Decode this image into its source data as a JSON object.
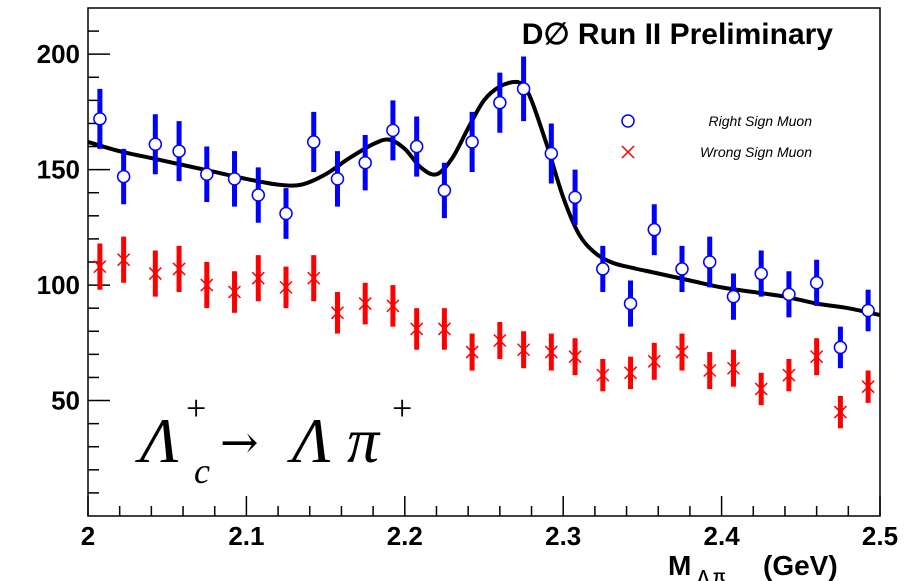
{
  "chart_data": {
    "type": "scatter",
    "title": "D∅ Run II Preliminary",
    "xlabel": "M",
    "xlabel_sub": "Λ π",
    "xlabel_unit": "(GeV)",
    "xlim": [
      2.0,
      2.5
    ],
    "ylim": [
      0,
      220
    ],
    "xticks": [
      "2",
      "2.1",
      "2.2",
      "2.3",
      "2.4",
      "2.5"
    ],
    "yticks": [
      "50",
      "100",
      "150",
      "200"
    ],
    "annotation": {
      "lambda": "Λ",
      "lambda_sup": "+",
      "lambda_sub": "c",
      "arrow": "→",
      "product_lambda": "Λ",
      "pi": "π",
      "pi_sup": "+"
    },
    "legend_position": "top-right",
    "series": [
      {
        "name": "Right Sign Muon",
        "marker": "circle",
        "color": "#0000ff",
        "x": [
          2.0075,
          2.0225,
          2.0425,
          2.0575,
          2.075,
          2.0925,
          2.1075,
          2.125,
          2.1425,
          2.1575,
          2.175,
          2.1925,
          2.2075,
          2.225,
          2.2425,
          2.26,
          2.275,
          2.2925,
          2.3075,
          2.325,
          2.3425,
          2.3575,
          2.375,
          2.3925,
          2.4075,
          2.425,
          2.4425,
          2.46,
          2.475,
          2.4925
        ],
        "y": [
          172,
          147,
          161,
          158,
          148,
          146,
          139,
          131,
          162,
          146,
          153,
          167,
          160,
          141,
          162,
          179,
          185,
          157,
          138,
          107,
          92,
          124,
          107,
          110,
          95,
          105,
          96,
          101,
          73,
          89
        ],
        "err": [
          13,
          12,
          13,
          13,
          12,
          12,
          12,
          11,
          13,
          12,
          12,
          13,
          13,
          12,
          13,
          13,
          14,
          13,
          12,
          10,
          10,
          11,
          10,
          11,
          10,
          10,
          10,
          10,
          9,
          9
        ]
      },
      {
        "name": "Wrong Sign Muon",
        "marker": "cross",
        "color": "#ff0000",
        "x": [
          2.0075,
          2.0225,
          2.0425,
          2.0575,
          2.075,
          2.0925,
          2.1075,
          2.125,
          2.1425,
          2.1575,
          2.175,
          2.1925,
          2.2075,
          2.225,
          2.2425,
          2.26,
          2.275,
          2.2925,
          2.3075,
          2.325,
          2.3425,
          2.3575,
          2.375,
          2.3925,
          2.4075,
          2.425,
          2.4425,
          2.46,
          2.475,
          2.4925
        ],
        "y": [
          108,
          111,
          105,
          107,
          100,
          97,
          103,
          99,
          103,
          88,
          92,
          91,
          81,
          81,
          71,
          76,
          72,
          71,
          69,
          61,
          62,
          67,
          71,
          63,
          64,
          55,
          61,
          69,
          45,
          56
        ],
        "err": [
          10,
          10,
          10,
          10,
          10,
          9,
          10,
          9,
          10,
          9,
          9,
          9,
          9,
          9,
          8,
          8,
          8,
          8,
          8,
          7,
          7,
          8,
          8,
          8,
          8,
          7,
          7,
          8,
          7,
          7
        ]
      }
    ],
    "fit_curve": {
      "color": "#000000",
      "x": [
        2.0,
        2.02,
        2.04,
        2.06,
        2.08,
        2.1,
        2.12,
        2.135,
        2.15,
        2.165,
        2.18,
        2.19,
        2.2,
        2.21,
        2.22,
        2.23,
        2.24,
        2.25,
        2.26,
        2.27,
        2.275,
        2.28,
        2.29,
        2.3,
        2.31,
        2.32,
        2.33,
        2.34,
        2.36,
        2.38,
        2.4,
        2.42,
        2.44,
        2.46,
        2.48,
        2.5
      ],
      "y": [
        162,
        158,
        155,
        152,
        149,
        146,
        143.5,
        143.5,
        148,
        155,
        161,
        163,
        159,
        151,
        148,
        155,
        168,
        180,
        186,
        188,
        186,
        180,
        160,
        138,
        122,
        114,
        110,
        108,
        105,
        102,
        99,
        97,
        95,
        92,
        90,
        87
      ]
    }
  }
}
